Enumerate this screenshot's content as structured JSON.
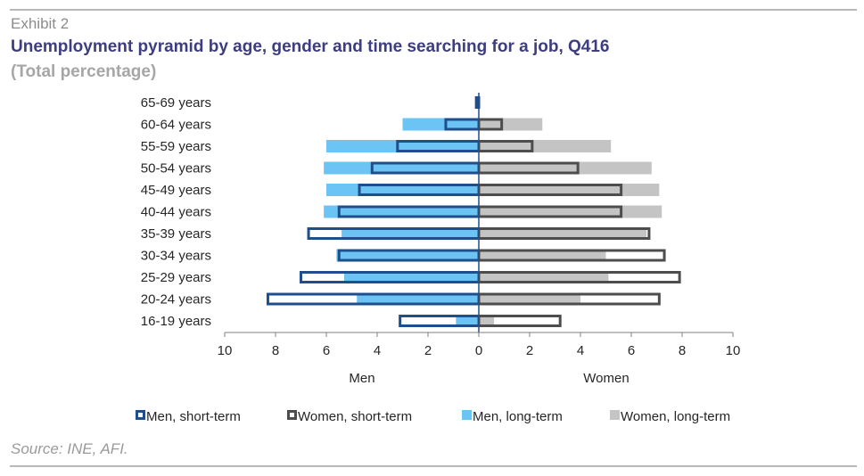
{
  "header": {
    "exhibit": "Exhibit 2",
    "title": "Unemployment pyramid by age, gender and time searching for a job, Q416",
    "subtitle": "(Total percentage)"
  },
  "footer": {
    "source": "Source: INE, AFI."
  },
  "colors": {
    "men_short": "#1f4e8c",
    "women_short": "#4d4d4d",
    "men_long": "#6cc4f4",
    "women_long": "#c4c4c4"
  },
  "chart_data": {
    "type": "bar",
    "orientation": "horizontal-pyramid",
    "categories": [
      "65-69 years",
      "60-64 years",
      "55-59 years",
      "50-54 years",
      "45-49 years",
      "40-44 years",
      "35-39 years",
      "30-34 years",
      "25-29 years",
      "20-24 years",
      "16-19 years"
    ],
    "series": [
      {
        "name": "Men, short-term",
        "side": "left",
        "style": "outline",
        "values": [
          0.1,
          1.3,
          3.2,
          4.2,
          4.7,
          5.5,
          6.7,
          5.5,
          7.0,
          8.3,
          3.1
        ]
      },
      {
        "name": "Women, short-term",
        "side": "right",
        "style": "outline",
        "values": [
          0.0,
          0.9,
          2.1,
          3.9,
          5.6,
          5.6,
          6.7,
          7.3,
          7.9,
          7.1,
          3.2
        ]
      },
      {
        "name": "Men, long-term",
        "side": "left",
        "style": "fill",
        "values": [
          0.1,
          3.0,
          6.0,
          6.1,
          6.0,
          6.1,
          5.4,
          5.6,
          5.3,
          4.8,
          0.9
        ]
      },
      {
        "name": "Women, long-term",
        "side": "right",
        "style": "fill",
        "values": [
          0.0,
          2.5,
          5.2,
          6.8,
          7.1,
          7.2,
          6.6,
          5.0,
          5.1,
          4.0,
          0.6
        ]
      }
    ],
    "x_ticks": [
      "10",
      "8",
      "6",
      "4",
      "2",
      "0",
      "2",
      "4",
      "6",
      "8",
      "10"
    ],
    "xlim": [
      -10,
      10
    ],
    "side_labels": {
      "left": "Men",
      "right": "Women"
    },
    "legend_position": "bottom",
    "grid": false
  }
}
